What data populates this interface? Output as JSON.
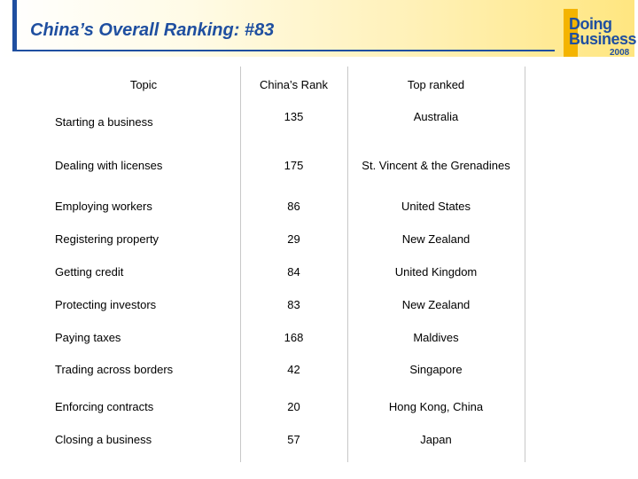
{
  "slide": {
    "title": "China’s Overall Ranking: #83"
  },
  "logo": {
    "line1": "Doing",
    "line2": "Business",
    "year": "2008"
  },
  "table": {
    "headers": [
      "Topic",
      "China’s Rank",
      "Top ranked"
    ],
    "rows": [
      {
        "topic": "Starting a business",
        "rank": "135",
        "top": "Australia"
      },
      {
        "topic": "Dealing with licenses",
        "rank": "175",
        "top": "St. Vincent & the Grenadines"
      },
      {
        "topic": "Employing workers",
        "rank": "86",
        "top": "United States"
      },
      {
        "topic": "Registering property",
        "rank": "29",
        "top": "New Zealand"
      },
      {
        "topic": "Getting credit",
        "rank": "84",
        "top": "United Kingdom"
      },
      {
        "topic": "Protecting investors",
        "rank": "83",
        "top": "New Zealand"
      },
      {
        "topic": "Paying taxes",
        "rank": "168",
        "top": "Maldives"
      },
      {
        "topic": "Trading across borders",
        "rank": "42",
        "top": "Singapore"
      },
      {
        "topic": "Enforcing contracts",
        "rank": "20",
        "top": "Hong Kong, China"
      },
      {
        "topic": "Closing a business",
        "rank": "57",
        "top": "Japan"
      }
    ]
  }
}
